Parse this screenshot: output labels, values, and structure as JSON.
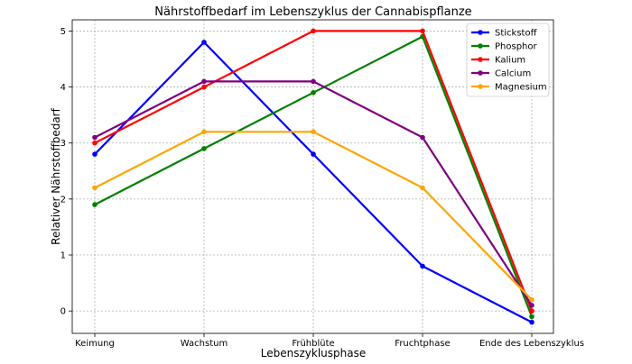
{
  "chart_data": {
    "type": "line",
    "title": "Nährstoffbedarf im Lebenszyklus der Cannabispflanze",
    "xlabel": "Lebenszyklusphase",
    "ylabel": "Relativer Nährstoffbedarf",
    "categories": [
      "Keimung",
      "Wachstum",
      "Frühblüte",
      "Fruchtphase",
      "Ende des Lebenszyklus"
    ],
    "ylim": [
      -0.4,
      5.2
    ],
    "yticks": [
      "0",
      "1",
      "2",
      "3",
      "4",
      "5"
    ],
    "grid": true,
    "legend_position": "top-right",
    "series": [
      {
        "name": "Stickstoff",
        "color": "#0000ff",
        "values": [
          2.8,
          4.8,
          2.8,
          0.8,
          -0.2
        ]
      },
      {
        "name": "Phosphor",
        "color": "#008000",
        "values": [
          1.9,
          2.9,
          3.9,
          4.9,
          -0.1
        ]
      },
      {
        "name": "Kalium",
        "color": "#ff0000",
        "values": [
          3.0,
          4.0,
          5.0,
          5.0,
          0.0
        ]
      },
      {
        "name": "Calcium",
        "color": "#800080",
        "values": [
          3.1,
          4.1,
          4.1,
          3.1,
          0.1
        ]
      },
      {
        "name": "Magnesium",
        "color": "#ffa500",
        "values": [
          2.2,
          3.2,
          3.2,
          2.2,
          0.2
        ]
      }
    ]
  }
}
